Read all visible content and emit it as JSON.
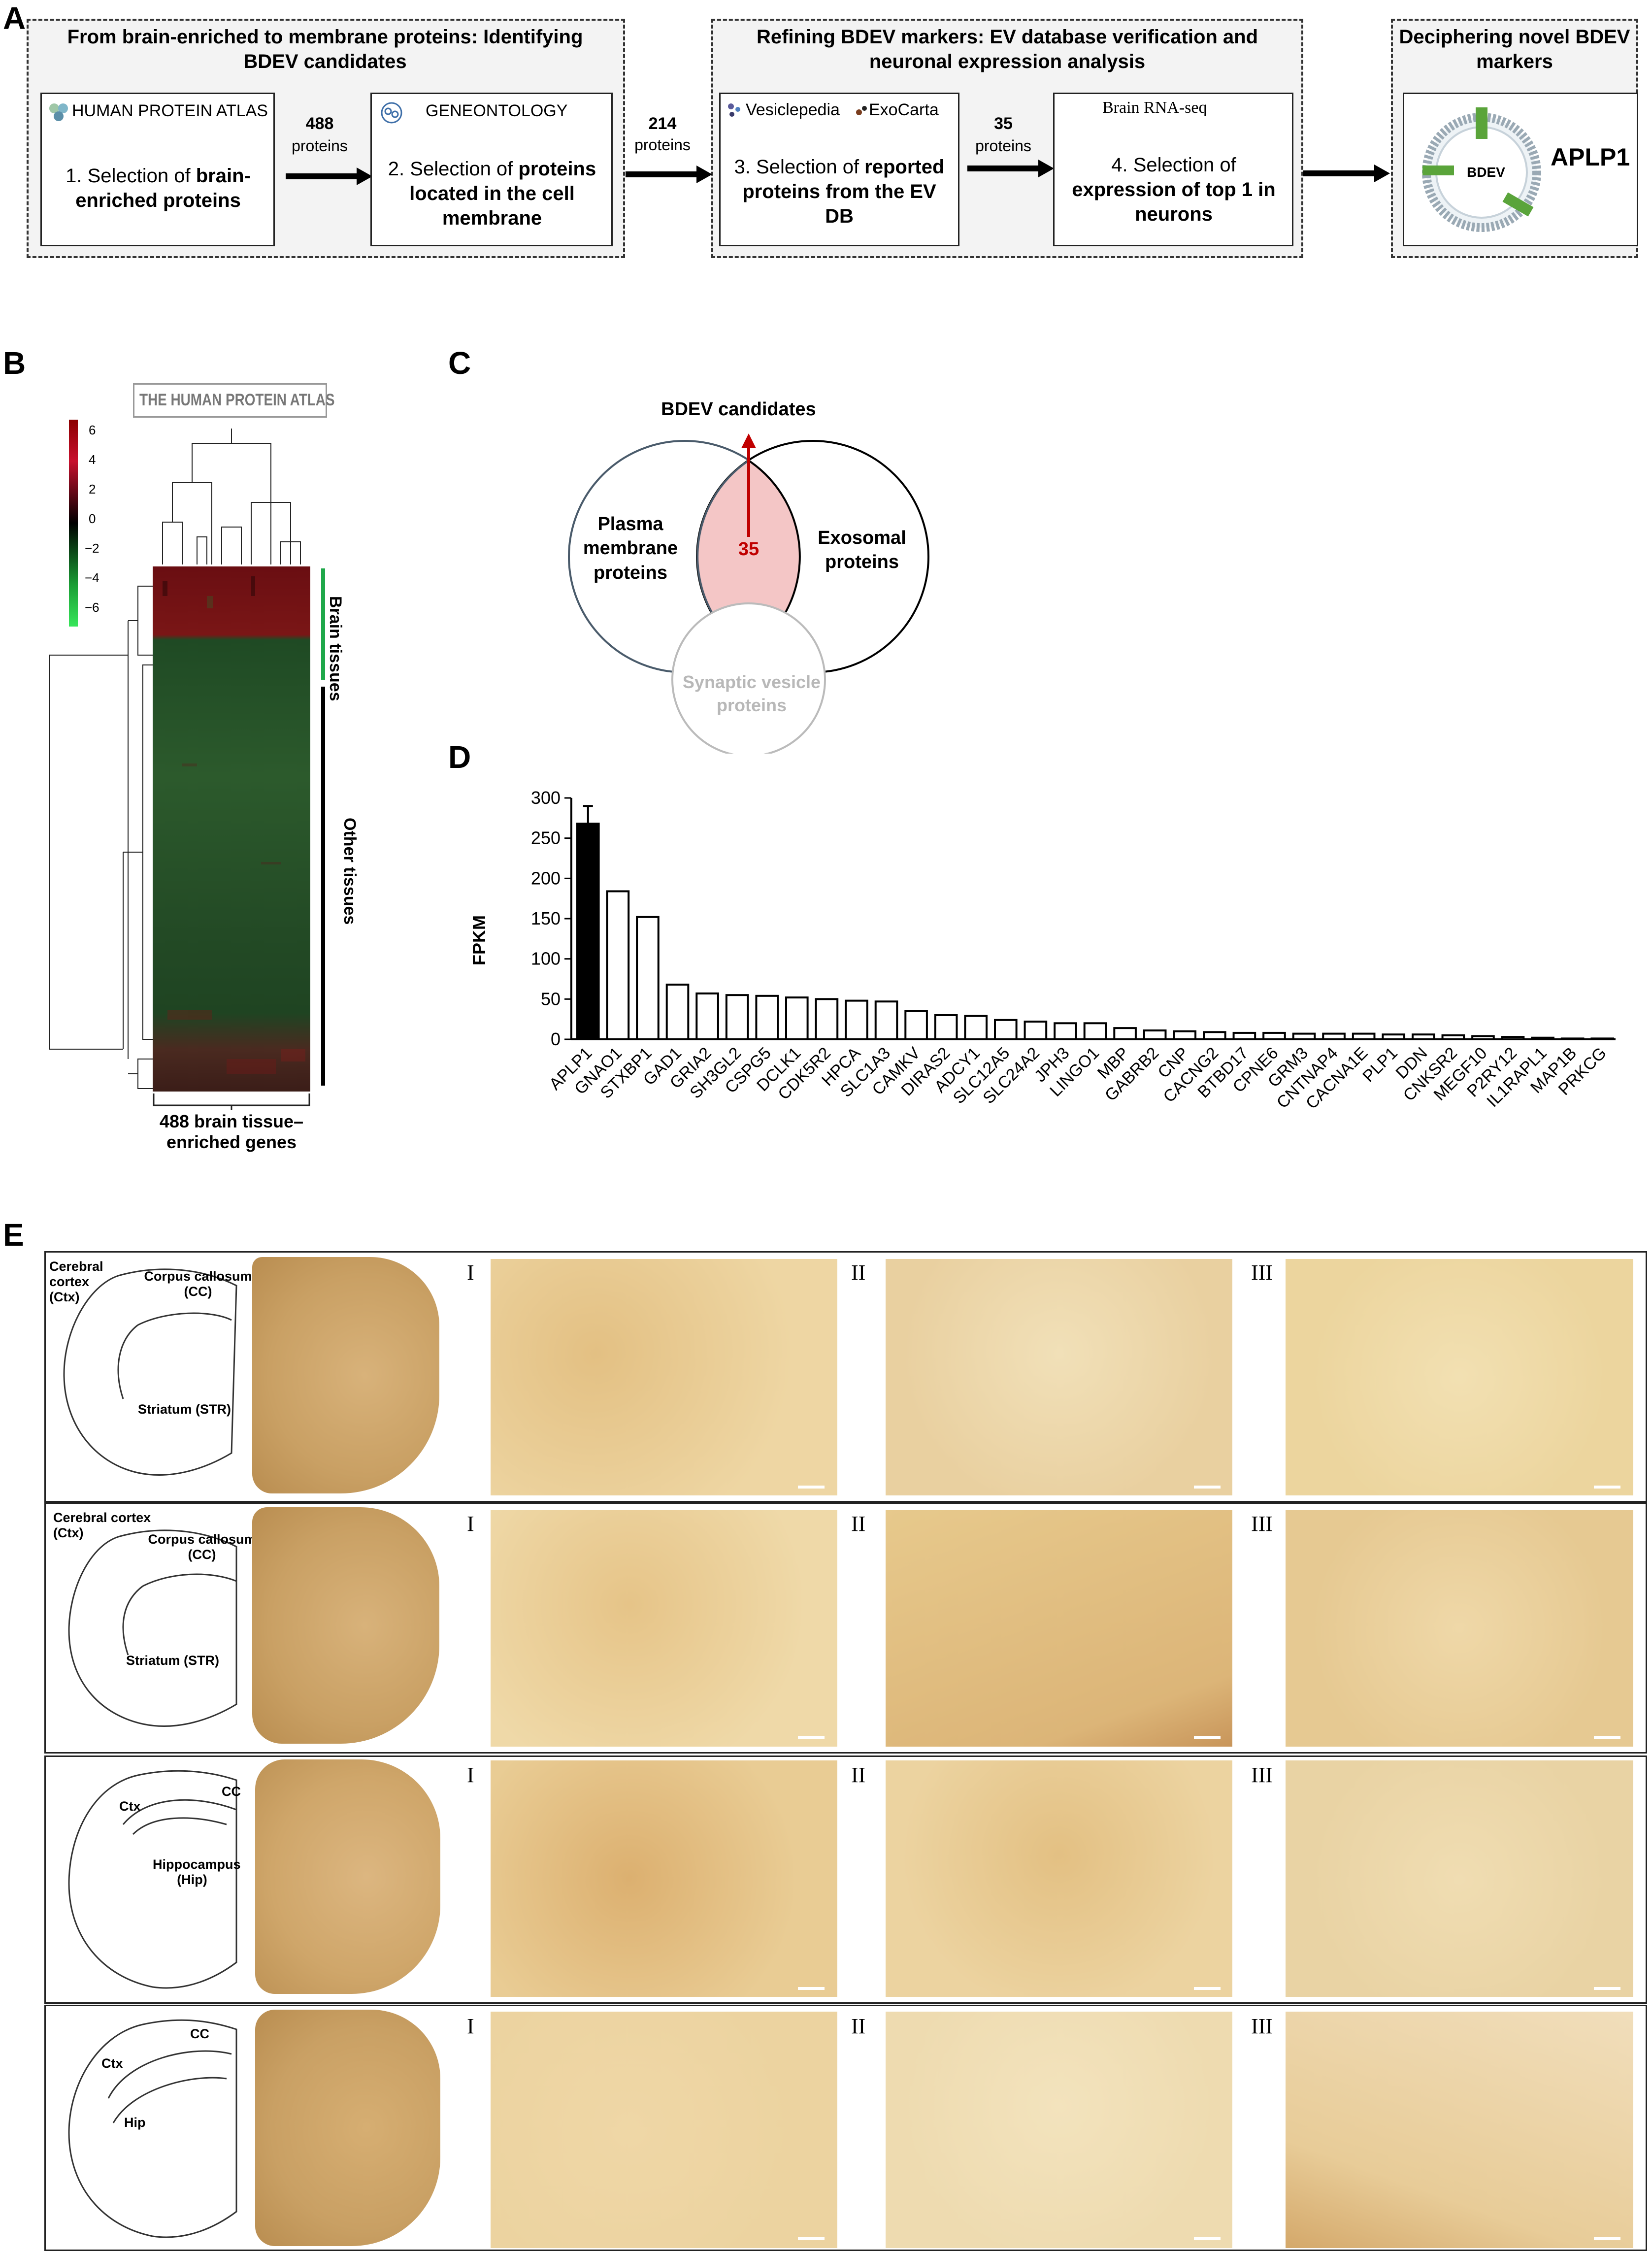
{
  "panels": {
    "a": "A",
    "b": "B",
    "c": "C",
    "d": "D",
    "e": "E"
  },
  "panelA": {
    "group1_title": "From brain-enriched to membrane proteins: Identifying BDEV candidates",
    "group2_title": "Refining BDEV markers: EV database verification and neuronal expression analysis",
    "group3_title": "Deciphering novel BDEV markers",
    "db_hpa": "HUMAN PROTEIN ATLAS",
    "db_go": "GENEONTOLOGY",
    "db_vesiclepedia": "Vesiclepedia",
    "db_exocarta": "ExoCarta",
    "db_brainrna": "Brain RNA-seq",
    "step1_pre": "1. Selection of ",
    "step1_bold": "brain-enriched proteins",
    "step2_pre": "2. Selection of ",
    "step2_bold": "proteins located in the cell membrane",
    "step3_pre": "3. Selection of ",
    "step3_bold": "reported proteins from the EV DB",
    "step4_pre": "4. Selection of ",
    "step4_bold": "expression of top 1 in neurons",
    "arrow1_num": "488",
    "arrow1_sub": "proteins",
    "arrow2_num": "214",
    "arrow2_sub": "proteins",
    "arrow3_num": "35",
    "arrow3_sub": "proteins",
    "result_label": "APLP1",
    "bdev_label": "BDEV",
    "tag_aplp1": "APLP1"
  },
  "panelB": {
    "hpa_logo_text": "THE HUMAN PROTEIN ATLAS",
    "colorbar_ticks": [
      "6",
      "4",
      "2",
      "0",
      "−2",
      "−4",
      "−6"
    ],
    "brain_label": "Brain tissues",
    "other_label": "Other tissues",
    "genes_label": "488 brain tissue– enriched genes",
    "colors": {
      "high": "#c8102e",
      "mid": "#000000",
      "low": "#2ecc40",
      "brain_bar": "#1fa84a"
    }
  },
  "panelC": {
    "top_label": "BDEV candidates",
    "set1": "Plasma membrane proteins",
    "set2": "Exosomal proteins",
    "set3": "Synaptic vesicle proteins",
    "intersection": "35",
    "colors": {
      "highlight": "#f4c6c6",
      "arrow": "#c00000"
    }
  },
  "chart_data": {
    "type": "bar",
    "ylabel": "FPKM",
    "ylim": [
      0,
      300
    ],
    "yticks": [
      0,
      50,
      100,
      150,
      200,
      250,
      300
    ],
    "categories": [
      "APLP1",
      "GNAO1",
      "STXBP1",
      "GAD1",
      "GRIA2",
      "SH3GL2",
      "CSPG5",
      "DCLK1",
      "CDK5R2",
      "HPCA",
      "SLC1A3",
      "CAMKV",
      "DIRAS2",
      "ADCY1",
      "SLC12A5",
      "SLC24A2",
      "JPH3",
      "LINGO1",
      "MBP",
      "GABRB2",
      "CNP",
      "CACNG2",
      "BTBD17",
      "CPNE6",
      "GRM3",
      "CNTNAP4",
      "CACNA1E",
      "PLP1",
      "DDN",
      "CNKSR2",
      "MEGF10",
      "P2RY12",
      "IL1RAPL1",
      "MAP1B",
      "PRKCG"
    ],
    "values": [
      268,
      184,
      152,
      68,
      57,
      55,
      54,
      52,
      50,
      48,
      47,
      35,
      30,
      29,
      24,
      22,
      20,
      20,
      14,
      11,
      10,
      9,
      8,
      8,
      7,
      7,
      7,
      6,
      6,
      5,
      4,
      3,
      2,
      1,
      1
    ],
    "highlight_index": 0,
    "colors": {
      "highlight": "#000000",
      "bar_outline": "#000000"
    }
  },
  "panelE": {
    "rows": [
      {
        "labels": [
          "Cerebral cortex (Ctx)",
          "Corpus callosum (CC)",
          "Striatum (STR)"
        ],
        "roi": [
          "I",
          "II",
          "III"
        ]
      },
      {
        "labels": [
          "Cerebral cortex (Ctx)",
          "Corpus callosum (CC)",
          "Striatum (STR)"
        ],
        "roi": [
          "I",
          "II",
          "III"
        ]
      },
      {
        "labels": [
          "Ctx",
          "CC",
          "Hippocampus (Hip)"
        ],
        "roi": [
          "I",
          "II",
          "III"
        ]
      },
      {
        "labels": [
          "Ctx",
          "CC",
          "Hip"
        ],
        "roi": [
          "I",
          "II",
          "III"
        ]
      }
    ],
    "colors": {
      "stain_light": "#f3e2bd",
      "stain_mid": "#e8c98f",
      "stain_dark": "#c49452"
    }
  }
}
